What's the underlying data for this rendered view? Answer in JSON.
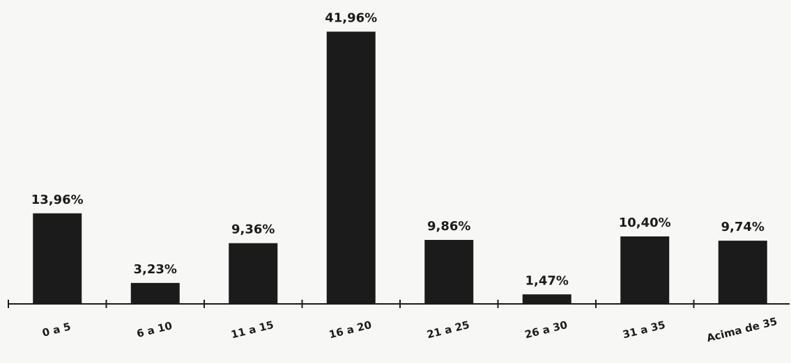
{
  "chart_data": {
    "type": "bar",
    "title": "",
    "xlabel": "",
    "ylabel": "",
    "categories": [
      "0 a 5",
      "6 a 10",
      "11 a 15",
      "16 a 20",
      "21 a 25",
      "26 a 30",
      "31 a 35",
      "Acima de 35"
    ],
    "values": [
      13.96,
      3.23,
      9.36,
      41.96,
      9.86,
      1.47,
      10.4,
      9.74
    ],
    "value_labels": [
      "13,96%",
      "3,23%",
      "9,36%",
      "41,96%",
      "9,86%",
      "1,47%",
      "10,40%",
      "9,74%"
    ],
    "ylim": [
      0,
      45
    ],
    "grid": false,
    "legend": "none",
    "colors": {
      "bar": "#1b1b1b",
      "background": "#f7f7f5"
    }
  }
}
